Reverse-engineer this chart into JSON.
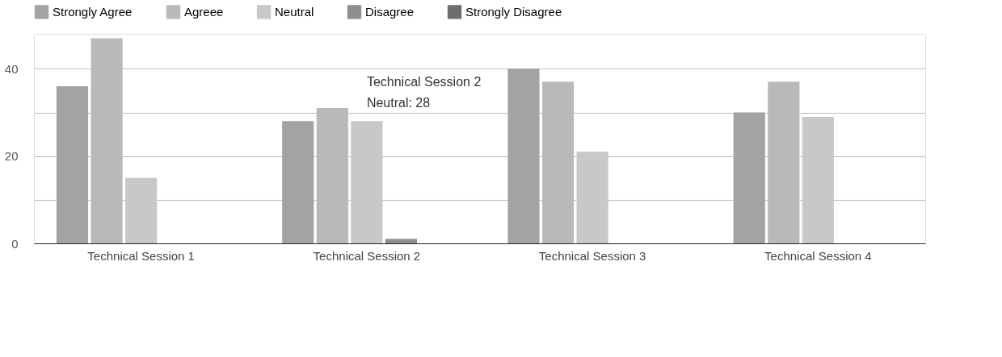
{
  "chart_data": {
    "type": "bar",
    "categories": [
      "Technical Session 1",
      "Technical Session 2",
      "Technical Session 3",
      "Technical Session 4"
    ],
    "series": [
      {
        "name": "Strongly Agree",
        "color": "#a3a3a3",
        "values": [
          36,
          28,
          40,
          30
        ]
      },
      {
        "name": "Agreee",
        "color": "#b9b9b9",
        "values": [
          47,
          31,
          37,
          37
        ]
      },
      {
        "name": "Neutral",
        "color": "#c8c8c8",
        "values": [
          15,
          28,
          21,
          29
        ]
      },
      {
        "name": "Disagree",
        "color": "#8e8e8e",
        "values": [
          0,
          1,
          0,
          null
        ]
      },
      {
        "name": "Strongly Disagree",
        "color": "#6e6e6e",
        "values": [
          0,
          0,
          0,
          null
        ]
      }
    ],
    "ylim": [
      0,
      48
    ],
    "yticks": [
      0,
      {
        "value": 10,
        "label": null
      },
      20,
      {
        "value": 30,
        "label": null
      },
      40
    ],
    "grid": "y",
    "legend": "top",
    "annotations": [
      {
        "text": "Technical Session 2\nNeutral: 28",
        "x": "Technical Session 2",
        "y": 28
      }
    ]
  }
}
